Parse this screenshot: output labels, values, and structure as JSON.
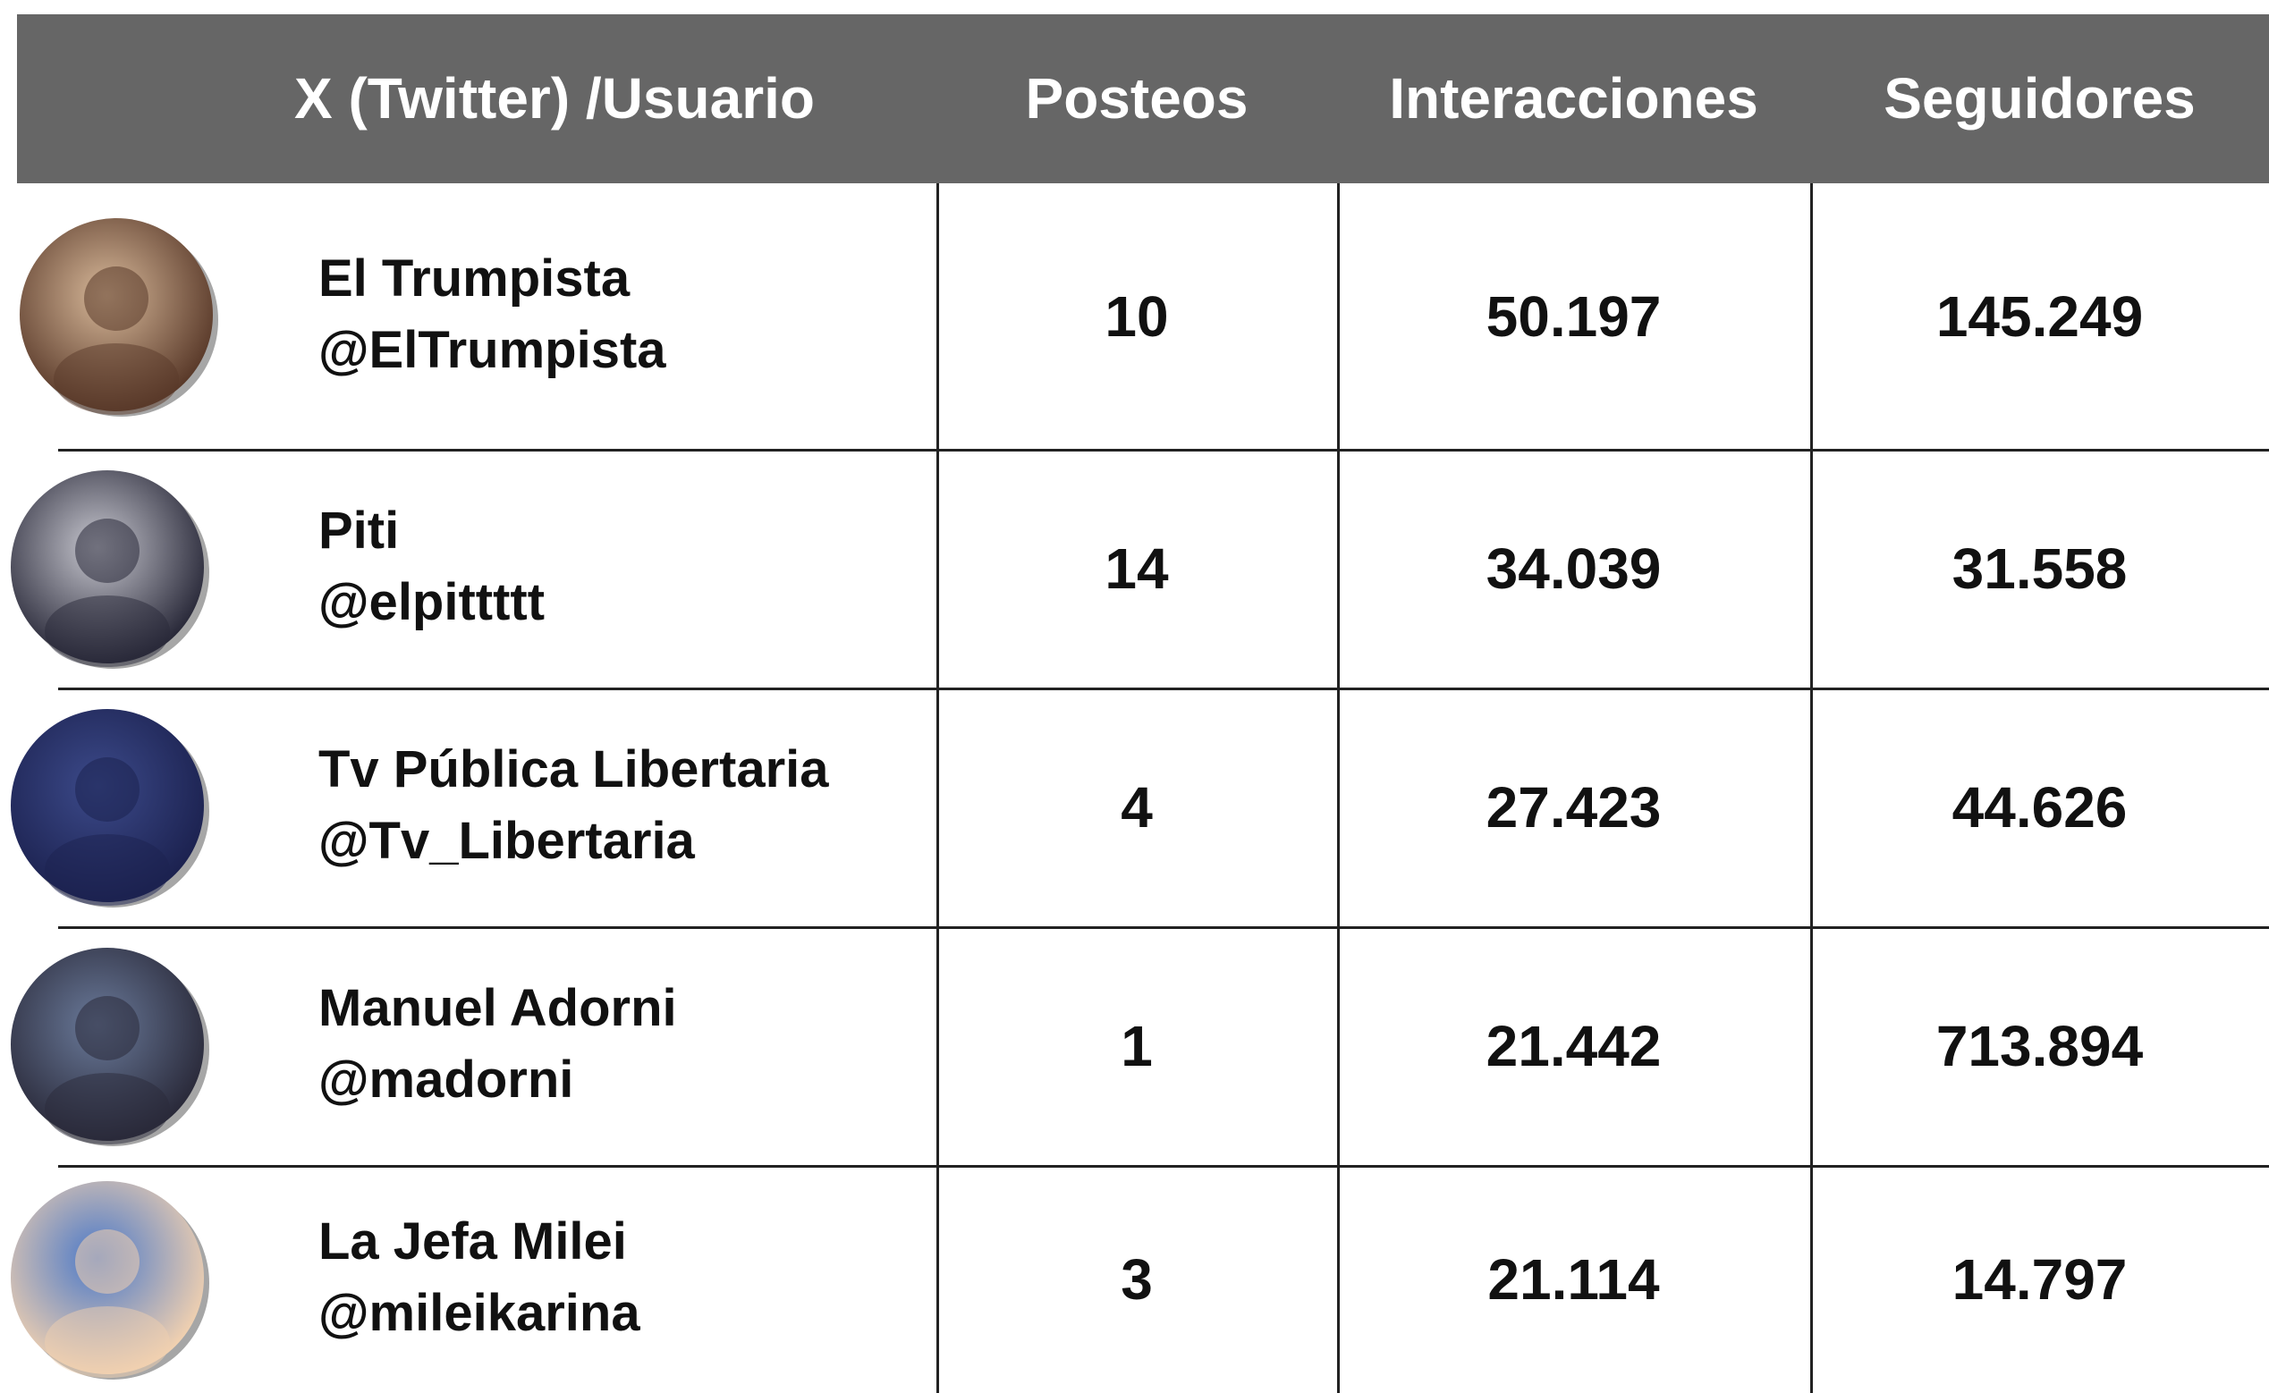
{
  "header": {
    "columns": [
      "X (Twitter) /Usuario",
      "Posteos",
      "Interacciones",
      "Seguidores"
    ]
  },
  "table": {
    "rows": [
      {
        "name": "El Trumpista",
        "handle": "@ElTrumpista",
        "posteos": "10",
        "interacciones": "50.197",
        "seguidores": "145.249"
      },
      {
        "name": "Piti",
        "handle": "@elpittttt",
        "posteos": "14",
        "interacciones": "34.039",
        "seguidores": "31.558"
      },
      {
        "name": "Tv Pública Libertaria",
        "handle": "@Tv_Libertaria",
        "posteos": "4",
        "interacciones": "27.423",
        "seguidores": "44.626"
      },
      {
        "name": "Manuel Adorni",
        "handle": "@madorni",
        "posteos": "1",
        "interacciones": "21.442",
        "seguidores": "713.894"
      },
      {
        "name": "La Jefa Milei",
        "handle": "@mileikarina",
        "posteos": "3",
        "interacciones": "21.114",
        "seguidores": "14.797"
      }
    ]
  }
}
